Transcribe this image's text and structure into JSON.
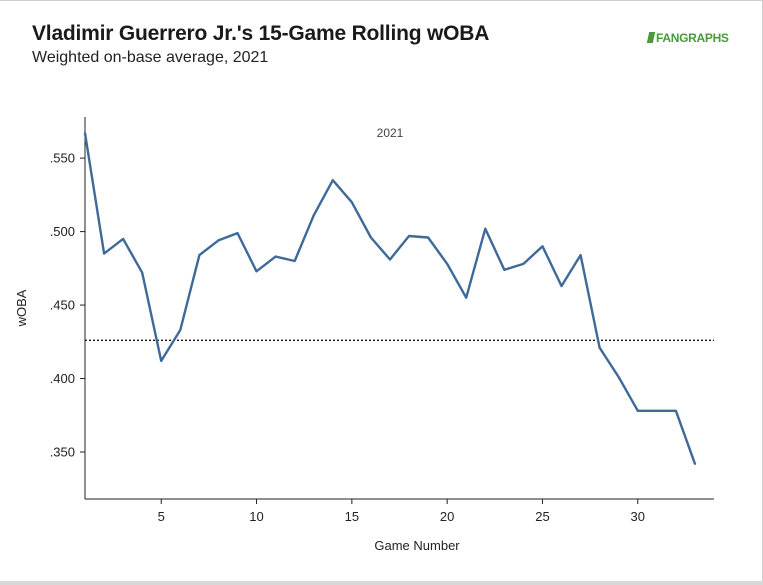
{
  "header": {
    "title": "Vladimir Guerrero Jr.'s 15-Game Rolling wOBA",
    "subtitle": "Weighted on-base average, 2021",
    "logo_text": "FANGRAPHS"
  },
  "colors": {
    "line": "#3d6a98",
    "reference": "#111111",
    "logo": "#4a9a3a"
  },
  "chart_data": {
    "type": "line",
    "title": "Vladimir Guerrero Jr.'s 15-Game Rolling wOBA",
    "subtitle": "Weighted on-base average, 2021",
    "facet_label": "2021",
    "xlabel": "Game Number",
    "ylabel": "wOBA",
    "xlim": [
      1,
      34
    ],
    "ylim": [
      0.318,
      0.578
    ],
    "x_ticks": [
      5,
      10,
      15,
      20,
      25,
      30
    ],
    "x_tick_labels": [
      "5",
      "10",
      "15",
      "20",
      "25",
      "30"
    ],
    "y_ticks": [
      0.35,
      0.4,
      0.45,
      0.5,
      0.55
    ],
    "y_tick_labels": [
      ".350",
      ".400",
      ".450",
      ".500",
      ".550"
    ],
    "grid": false,
    "reference_line": {
      "y": 0.426,
      "style": "dotted"
    },
    "series": [
      {
        "x": [
          1,
          2,
          3,
          4,
          5,
          6,
          7,
          8,
          9,
          10,
          11,
          12,
          13,
          14,
          15,
          16,
          17,
          18,
          19,
          20,
          21,
          22,
          23,
          24,
          25,
          26,
          27,
          28,
          29,
          30,
          31,
          32,
          33
        ],
        "values": [
          0.567,
          0.485,
          0.495,
          0.472,
          0.412,
          0.433,
          0.484,
          0.494,
          0.499,
          0.473,
          0.483,
          0.48,
          0.511,
          0.535,
          0.52,
          0.496,
          0.481,
          0.497,
          0.496,
          0.478,
          0.455,
          0.502,
          0.474,
          0.478,
          0.49,
          0.463,
          0.484,
          0.421,
          0.401,
          0.378,
          0.378,
          0.378,
          0.342
        ]
      }
    ]
  }
}
